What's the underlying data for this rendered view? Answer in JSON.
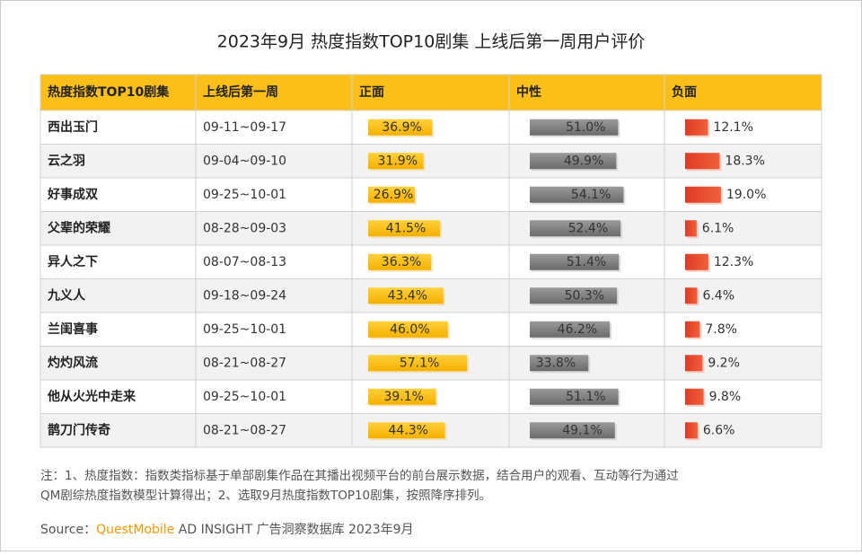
{
  "title": "2023年9月 热度指数TOP10剧集 上线后第一周用户评价",
  "table": {
    "header": [
      "热度指数TOP10剧集",
      "上线后第一周",
      "正面",
      "中性",
      "负面"
    ],
    "rows": [
      {
        "name": "西出玉门",
        "period": "09-11~09-17",
        "values": [
          36.9,
          51.0,
          12.1
        ],
        "value_labels": [
          "36.9%",
          "51.0%",
          "12.1%"
        ]
      },
      {
        "name": "云之羽",
        "period": "09-04~09-10",
        "values": [
          31.9,
          49.9,
          18.3
        ],
        "value_labels": [
          "31.9%",
          "49.9%",
          "18.3%"
        ]
      },
      {
        "name": "好事成双",
        "period": "09-25~10-01",
        "values": [
          26.9,
          54.1,
          19.0
        ],
        "value_labels": [
          "26.9%",
          "54.1%",
          "19.0%"
        ]
      },
      {
        "name": "父辈的荣耀",
        "period": "08-28~09-03",
        "values": [
          41.5,
          52.4,
          6.1
        ],
        "value_labels": [
          "41.5%",
          "52.4%",
          "6.1%"
        ]
      },
      {
        "name": "异人之下",
        "period": "08-07~08-13",
        "values": [
          36.3,
          51.4,
          12.3
        ],
        "value_labels": [
          "36.3%",
          "51.4%",
          "12.3%"
        ]
      },
      {
        "name": "九义人",
        "period": "09-18~09-24",
        "values": [
          43.4,
          50.3,
          6.4
        ],
        "value_labels": [
          "43.4%",
          "50.3%",
          "6.4%"
        ]
      },
      {
        "name": "兰闺喜事",
        "period": "09-25~10-01",
        "values": [
          46.0,
          46.2,
          7.8
        ],
        "value_labels": [
          "46.0%",
          "46.2%",
          "7.8%"
        ]
      },
      {
        "name": "灼灼风流",
        "period": "08-21~08-27",
        "values": [
          57.1,
          33.8,
          9.2
        ],
        "value_labels": [
          "57.1%",
          "33.8%",
          "9.2%"
        ]
      },
      {
        "name": "他从火光中走来",
        "period": "09-25~10-01",
        "values": [
          39.1,
          51.1,
          9.8
        ],
        "value_labels": [
          "39.1%",
          "51.1%",
          "9.8%"
        ]
      },
      {
        "name": "鹊刀门传奇",
        "period": "08-21~08-27",
        "values": [
          44.3,
          49.1,
          6.6
        ],
        "value_labels": [
          "44.3%",
          "49.1%",
          "6.6%"
        ]
      }
    ]
  },
  "notes": [
    "注：1、热度指数：指数类指标基于单部剧集作品在其播出视频平台的前台展示数据，结合用户的观看、互动等行为通过",
    "QM剧综热度指数模型计算得出；2、选取9月热度指数TOP10剧集，按照降序排列。"
  ],
  "source": {
    "prefix": "Source：",
    "brand": "QuestMobile",
    "rest": " AD INSIGHT 广告洞察数据库 2023年9月"
  }
}
